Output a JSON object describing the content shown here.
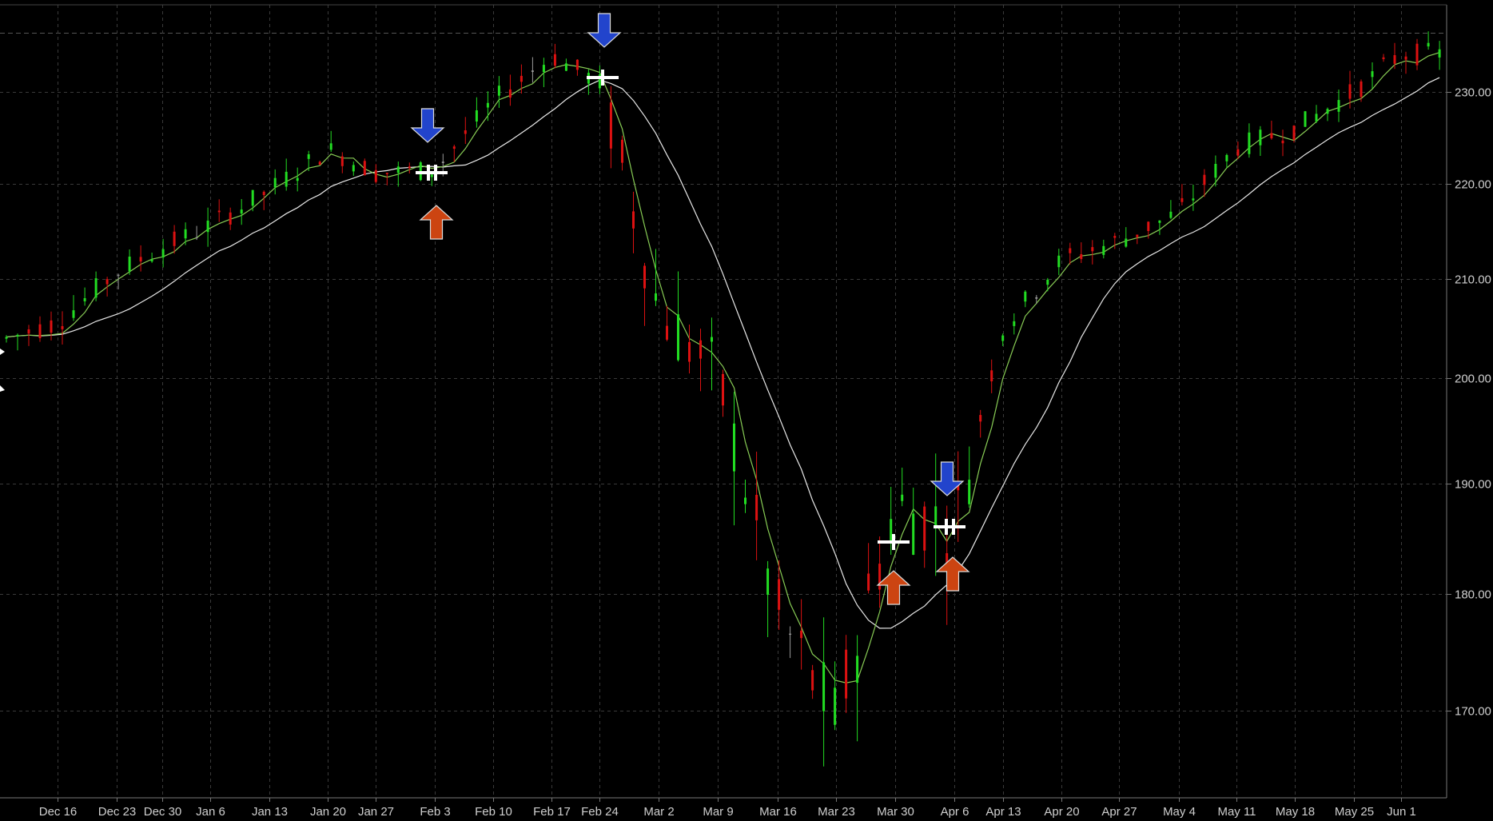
{
  "chart_data": {
    "type": "candlestick",
    "x_labels": [
      "Dec 16",
      "Dec 23",
      "Dec 30",
      "Jan 6",
      "Jan 13",
      "Jan 20",
      "Jan 27",
      "Feb 3",
      "Feb 10",
      "Feb 17",
      "Feb 24",
      "Mar 2",
      "Mar 9",
      "Mar 16",
      "Mar 23",
      "Mar 30",
      "Apr 6",
      "Apr 13",
      "Apr 20",
      "Apr 27",
      "May 4",
      "May 11",
      "May 18",
      "May 25",
      "Jun 1"
    ],
    "y_ticks": [
      "230.00",
      "220.00",
      "210.00",
      "200.00",
      "190.00",
      "180.00",
      "170.00"
    ],
    "ylim": [
      163,
      238
    ],
    "grid": true,
    "colors": {
      "background": "#000000",
      "up_candle": "#22dd22",
      "down_candle": "#dd1111",
      "neutral_candle": "#999999",
      "fast_ma": "#88cc55",
      "slow_ma": "#e8e8e8",
      "grid": "#3a3a3a",
      "axis_text": "#cfcfcf",
      "buy_arrow": "#cc4411",
      "sell_arrow": "#2244cc"
    },
    "close_series": [
      {
        "label": "Dec 16",
        "value": 205.6
      },
      {
        "label": "Dec 23",
        "value": 210.7
      },
      {
        "label": "Dec 30",
        "value": 213.3
      },
      {
        "label": "Jan 6",
        "value": 215.6
      },
      {
        "label": "Jan 13",
        "value": 219.3
      },
      {
        "label": "Jan 20",
        "value": 223.8
      },
      {
        "label": "Jan 27",
        "value": 221.2
      },
      {
        "label": "Feb 3",
        "value": 221.5
      },
      {
        "label": "Feb 10",
        "value": 229.0
      },
      {
        "label": "Feb 17",
        "value": 233.8
      },
      {
        "label": "Feb 24",
        "value": 231.0
      },
      {
        "label": "Mar 2",
        "value": 207.0
      },
      {
        "label": "Mar 9",
        "value": 200.0
      },
      {
        "label": "Mar 16",
        "value": 178.0
      },
      {
        "label": "Mar 23",
        "value": 169.0
      },
      {
        "label": "Mar 30",
        "value": 188.0
      },
      {
        "label": "Apr 6",
        "value": 186.0
      },
      {
        "label": "Apr 13",
        "value": 205.0
      },
      {
        "label": "Apr 20",
        "value": 212.0
      },
      {
        "label": "Apr 27",
        "value": 214.0
      },
      {
        "label": "May 4",
        "value": 217.0
      },
      {
        "label": "May 11",
        "value": 224.0
      },
      {
        "label": "May 18",
        "value": 226.0
      },
      {
        "label": "May 25",
        "value": 230.0
      },
      {
        "label": "Jun 1",
        "value": 234.0
      }
    ],
    "signals": [
      {
        "label": "Feb 3",
        "kind": "sell"
      },
      {
        "label": "Feb 3",
        "kind": "buy"
      },
      {
        "label": "Feb 24",
        "kind": "sell"
      },
      {
        "label": "Mar 30",
        "kind": "buy"
      },
      {
        "label": "Apr 6",
        "kind": "sell"
      },
      {
        "label": "Apr 6",
        "kind": "buy"
      }
    ]
  }
}
